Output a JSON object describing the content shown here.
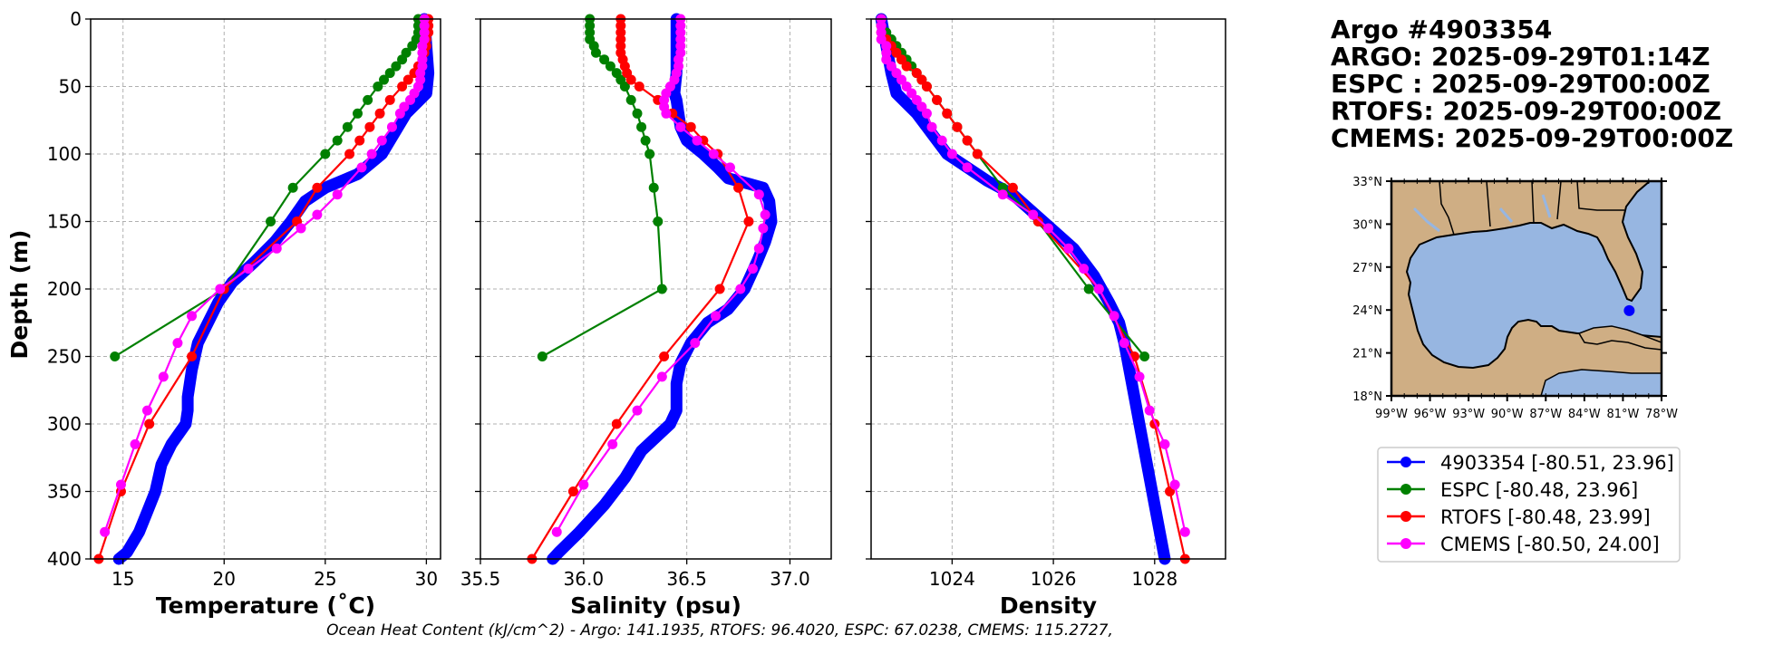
{
  "info": {
    "lines": [
      "Argo #4903354",
      "ARGO: 2025-09-29T01:14Z",
      "ESPC : 2025-09-29T00:00Z",
      "RTOFS: 2025-09-29T00:00Z",
      "CMEMS: 2025-09-29T00:00Z"
    ]
  },
  "footer": "Ocean Heat Content (kJ/cm^2) - Argo: 141.1935,  RTOFS: 96.4020,  ESPC: 67.0238,  CMEMS: 115.2727,",
  "colors": {
    "argo": "#0000ff",
    "espc": "#008000",
    "rtofs": "#ff0000",
    "cmems": "#ff00ff",
    "ocean": "#97b6e1",
    "land": "#cfae84",
    "grid": "#b0b0b0"
  },
  "legend": [
    {
      "label": "4903354 [-80.51, 23.96]",
      "color": "#0000ff"
    },
    {
      "label": "ESPC [-80.48, 23.96]",
      "color": "#008000"
    },
    {
      "label": "RTOFS [-80.48, 23.99]",
      "color": "#ff0000"
    },
    {
      "label": "CMEMS [-80.50, 24.00]",
      "color": "#ff00ff"
    }
  ],
  "map": {
    "lon_ticks": [
      "99°W",
      "96°W",
      "93°W",
      "90°W",
      "87°W",
      "84°W",
      "81°W",
      "78°W"
    ],
    "lat_ticks": [
      "33°N",
      "30°N",
      "27°N",
      "24°N",
      "21°N",
      "18°N"
    ],
    "lon_range": [
      -99,
      -78
    ],
    "lat_range": [
      18,
      33
    ],
    "float_position": [
      -80.51,
      23.96
    ]
  },
  "chart_data": [
    {
      "type": "line",
      "xlabel": "Temperature (˚C)",
      "ylabel": "Depth (m)",
      "xlim": [
        13.4,
        30.7
      ],
      "ylim": [
        400,
        0
      ],
      "xticks": [
        15,
        20,
        25,
        30
      ],
      "yticks": [
        0,
        50,
        100,
        150,
        200,
        250,
        300,
        350,
        400
      ],
      "grid": true,
      "series": [
        {
          "name": "4903354",
          "style": "argo",
          "depth": [
            0,
            20,
            40,
            55,
            70,
            85,
            100,
            115,
            125,
            135,
            150,
            165,
            180,
            195,
            210,
            225,
            240,
            260,
            280,
            290,
            300,
            315,
            330,
            350,
            365,
            380,
            395,
            400
          ],
          "values": [
            29.9,
            30.0,
            30.1,
            30.0,
            29.0,
            28.4,
            27.8,
            26.6,
            25.0,
            24.0,
            23.3,
            22.5,
            21.5,
            20.4,
            19.7,
            19.2,
            18.7,
            18.4,
            18.2,
            18.2,
            18.1,
            17.4,
            16.9,
            16.6,
            16.2,
            15.8,
            15.2,
            14.8
          ]
        },
        {
          "name": "ESPC",
          "style": "model",
          "depth": [
            0,
            5,
            10,
            15,
            20,
            25,
            30,
            35,
            40,
            45,
            50,
            60,
            70,
            80,
            90,
            100,
            125,
            150,
            200,
            250
          ],
          "values": [
            29.6,
            29.6,
            29.6,
            29.5,
            29.3,
            29.0,
            28.8,
            28.5,
            28.2,
            27.9,
            27.6,
            27.1,
            26.6,
            26.1,
            25.6,
            25.0,
            23.4,
            22.3,
            20.0,
            14.6
          ]
        },
        {
          "name": "RTOFS",
          "style": "model",
          "depth": [
            0,
            5,
            10,
            15,
            20,
            25,
            30,
            35,
            40,
            45,
            50,
            60,
            70,
            80,
            90,
            100,
            125,
            150,
            200,
            250,
            300,
            350,
            400
          ],
          "values": [
            30.1,
            30.1,
            30.1,
            30.0,
            30.0,
            29.9,
            29.8,
            29.6,
            29.4,
            29.1,
            28.8,
            28.2,
            27.7,
            27.2,
            26.7,
            26.2,
            24.6,
            23.6,
            20.0,
            18.4,
            16.3,
            14.9,
            13.8
          ]
        },
        {
          "name": "CMEMS",
          "style": "model",
          "depth": [
            0,
            5,
            10,
            15,
            20,
            25,
            30,
            35,
            40,
            45,
            50,
            55,
            60,
            65,
            70,
            80,
            90,
            100,
            110,
            130,
            145,
            155,
            170,
            185,
            200,
            220,
            240,
            265,
            290,
            315,
            345,
            380
          ],
          "values": [
            29.9,
            29.9,
            29.9,
            29.9,
            29.8,
            29.8,
            29.8,
            29.8,
            29.7,
            29.7,
            29.6,
            29.4,
            29.2,
            28.9,
            28.7,
            28.3,
            27.8,
            27.3,
            26.8,
            25.6,
            24.6,
            23.8,
            22.6,
            21.2,
            19.8,
            18.4,
            17.7,
            17.0,
            16.2,
            15.6,
            14.9,
            14.1
          ]
        }
      ]
    },
    {
      "type": "line",
      "xlabel": "Salinity (psu)",
      "ylabel": "",
      "xlim": [
        35.5,
        37.2
      ],
      "ylim": [
        400,
        0
      ],
      "xticks": [
        35.5,
        36.0,
        36.5,
        37.0
      ],
      "yticks": [
        0,
        50,
        100,
        150,
        200,
        250,
        300,
        350,
        400
      ],
      "grid": true,
      "series": [
        {
          "name": "4903354",
          "style": "argo",
          "depth": [
            0,
            20,
            40,
            55,
            60,
            70,
            80,
            90,
            100,
            110,
            118,
            122,
            125,
            135,
            150,
            165,
            180,
            200,
            215,
            225,
            240,
            255,
            270,
            290,
            300,
            310,
            320,
            340,
            360,
            380,
            395,
            400
          ],
          "values": [
            36.45,
            36.45,
            36.45,
            36.44,
            36.45,
            36.46,
            36.47,
            36.5,
            36.58,
            36.65,
            36.7,
            36.8,
            36.87,
            36.9,
            36.91,
            36.88,
            36.84,
            36.78,
            36.7,
            36.6,
            36.52,
            36.47,
            36.45,
            36.45,
            36.42,
            36.35,
            36.28,
            36.2,
            36.1,
            35.98,
            35.88,
            35.85
          ]
        },
        {
          "name": "ESPC",
          "style": "model",
          "depth": [
            0,
            5,
            10,
            15,
            20,
            25,
            30,
            35,
            40,
            45,
            50,
            60,
            70,
            80,
            90,
            100,
            125,
            150,
            200,
            250
          ],
          "values": [
            36.03,
            36.03,
            36.03,
            36.03,
            36.05,
            36.06,
            36.1,
            36.13,
            36.16,
            36.18,
            36.2,
            36.23,
            36.26,
            36.28,
            36.3,
            36.32,
            36.34,
            36.36,
            36.38,
            35.8
          ]
        },
        {
          "name": "RTOFS",
          "style": "model",
          "depth": [
            0,
            5,
            10,
            15,
            20,
            25,
            30,
            35,
            40,
            45,
            50,
            60,
            70,
            80,
            90,
            100,
            125,
            150,
            200,
            250,
            300,
            350,
            400
          ],
          "values": [
            36.18,
            36.18,
            36.18,
            36.18,
            36.18,
            36.18,
            36.19,
            36.2,
            36.21,
            36.23,
            36.27,
            36.36,
            36.43,
            36.52,
            36.58,
            36.65,
            36.75,
            36.8,
            36.66,
            36.39,
            36.16,
            35.95,
            35.75
          ]
        },
        {
          "name": "CMEMS",
          "style": "model",
          "depth": [
            0,
            5,
            10,
            15,
            20,
            25,
            30,
            35,
            40,
            45,
            50,
            55,
            60,
            65,
            70,
            80,
            90,
            100,
            110,
            130,
            145,
            155,
            170,
            185,
            200,
            220,
            240,
            265,
            290,
            315,
            345,
            380
          ],
          "values": [
            36.47,
            36.47,
            36.47,
            36.47,
            36.47,
            36.47,
            36.46,
            36.46,
            36.45,
            36.44,
            36.42,
            36.4,
            36.39,
            36.39,
            36.4,
            36.47,
            36.55,
            36.63,
            36.71,
            36.85,
            36.88,
            36.87,
            36.85,
            36.82,
            36.76,
            36.64,
            36.54,
            36.38,
            36.26,
            36.14,
            36.0,
            35.87
          ]
        }
      ]
    },
    {
      "type": "line",
      "xlabel": "Density",
      "ylabel": "",
      "xlim": [
        1022.4,
        1029.4
      ],
      "ylim": [
        400,
        0
      ],
      "xticks": [
        1024,
        1026,
        1028
      ],
      "yticks": [
        0,
        50,
        100,
        150,
        200,
        250,
        300,
        350,
        400
      ],
      "grid": true,
      "series": [
        {
          "name": "4903354",
          "style": "argo",
          "depth": [
            0,
            20,
            40,
            55,
            70,
            85,
            100,
            110,
            120,
            130,
            150,
            170,
            190,
            210,
            225,
            240,
            260,
            280,
            300,
            320,
            340,
            360,
            380,
            400
          ],
          "values": [
            1022.6,
            1022.7,
            1022.8,
            1022.9,
            1023.3,
            1023.6,
            1023.9,
            1024.3,
            1024.7,
            1025.2,
            1025.8,
            1026.4,
            1026.8,
            1027.1,
            1027.3,
            1027.4,
            1027.5,
            1027.6,
            1027.7,
            1027.8,
            1027.9,
            1028.0,
            1028.1,
            1028.2
          ]
        },
        {
          "name": "ESPC",
          "style": "model",
          "depth": [
            0,
            5,
            10,
            15,
            20,
            25,
            30,
            35,
            40,
            45,
            50,
            60,
            70,
            80,
            90,
            100,
            125,
            150,
            200,
            250
          ],
          "values": [
            1022.6,
            1022.6,
            1022.7,
            1022.8,
            1022.9,
            1023.0,
            1023.1,
            1023.2,
            1023.3,
            1023.4,
            1023.5,
            1023.7,
            1023.9,
            1024.1,
            1024.3,
            1024.5,
            1025.0,
            1025.7,
            1026.7,
            1027.8
          ]
        },
        {
          "name": "RTOFS",
          "style": "model",
          "depth": [
            0,
            5,
            10,
            15,
            20,
            25,
            30,
            35,
            40,
            45,
            50,
            60,
            70,
            80,
            90,
            100,
            125,
            150,
            200,
            250,
            300,
            350,
            400
          ],
          "values": [
            1022.6,
            1022.6,
            1022.6,
            1022.7,
            1022.8,
            1022.9,
            1023.0,
            1023.1,
            1023.3,
            1023.4,
            1023.5,
            1023.7,
            1023.9,
            1024.1,
            1024.3,
            1024.5,
            1025.2,
            1025.7,
            1026.9,
            1027.6,
            1028.0,
            1028.3,
            1028.6
          ]
        },
        {
          "name": "CMEMS",
          "style": "model",
          "depth": [
            0,
            5,
            10,
            15,
            20,
            25,
            30,
            35,
            40,
            45,
            50,
            55,
            60,
            65,
            70,
            80,
            90,
            100,
            110,
            130,
            145,
            155,
            170,
            185,
            200,
            220,
            240,
            265,
            290,
            315,
            345,
            380
          ],
          "values": [
            1022.6,
            1022.6,
            1022.6,
            1022.6,
            1022.7,
            1022.7,
            1022.7,
            1022.8,
            1022.9,
            1023.0,
            1023.1,
            1023.2,
            1023.3,
            1023.4,
            1023.5,
            1023.6,
            1023.8,
            1024.0,
            1024.3,
            1025.0,
            1025.6,
            1025.9,
            1026.3,
            1026.6,
            1026.9,
            1027.2,
            1027.4,
            1027.7,
            1027.9,
            1028.2,
            1028.4,
            1028.6
          ]
        }
      ]
    }
  ]
}
